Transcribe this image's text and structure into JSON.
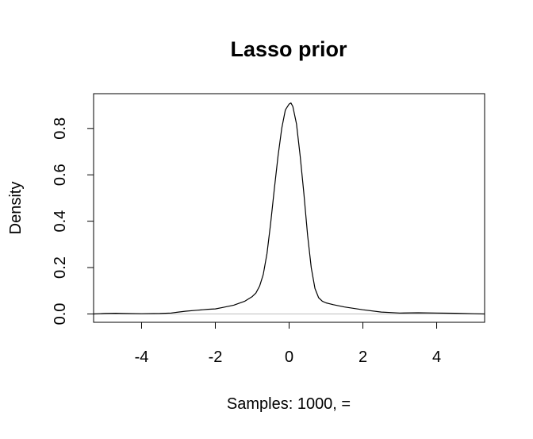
{
  "chart_data": {
    "type": "line",
    "title": "Lasso prior",
    "xlabel": "Samples: 1000,  =",
    "ylabel": "Density",
    "xlim": [
      -5.3,
      5.3
    ],
    "ylim": [
      -0.036,
      0.95
    ],
    "x_ticks": [
      -4,
      -2,
      0,
      2,
      4
    ],
    "y_ticks": [
      0.0,
      0.2,
      0.4,
      0.6,
      0.8
    ],
    "x_tick_labels": [
      "-4",
      "-2",
      "0",
      "2",
      "4"
    ],
    "y_tick_labels": [
      "0.0",
      "0.2",
      "0.4",
      "0.6",
      "0.8"
    ],
    "grid": false,
    "legend": "none",
    "baseline": {
      "y": 0,
      "color": "#bebebe"
    },
    "series": [
      {
        "color": "#000000",
        "x": [
          -5.3,
          -5.0,
          -4.7,
          -4.5,
          -4.0,
          -3.5,
          -3.2,
          -3.0,
          -2.8,
          -2.5,
          -2.2,
          -2.0,
          -1.8,
          -1.5,
          -1.2,
          -1.0,
          -0.9,
          -0.8,
          -0.7,
          -0.6,
          -0.5,
          -0.4,
          -0.3,
          -0.2,
          -0.1,
          0.0,
          0.05,
          0.1,
          0.2,
          0.3,
          0.4,
          0.5,
          0.6,
          0.7,
          0.8,
          0.9,
          1.0,
          1.2,
          1.5,
          2.0,
          2.5,
          3.0,
          3.5,
          4.0,
          4.5,
          5.0,
          5.3
        ],
        "y": [
          0.0,
          0.002,
          0.003,
          0.002,
          0.001,
          0.002,
          0.004,
          0.008,
          0.012,
          0.016,
          0.02,
          0.022,
          0.028,
          0.038,
          0.055,
          0.075,
          0.09,
          0.12,
          0.17,
          0.26,
          0.39,
          0.54,
          0.68,
          0.8,
          0.88,
          0.905,
          0.91,
          0.895,
          0.82,
          0.68,
          0.52,
          0.34,
          0.2,
          0.11,
          0.07,
          0.055,
          0.048,
          0.04,
          0.03,
          0.018,
          0.008,
          0.004,
          0.005,
          0.004,
          0.003,
          0.001,
          0.0
        ]
      }
    ]
  }
}
